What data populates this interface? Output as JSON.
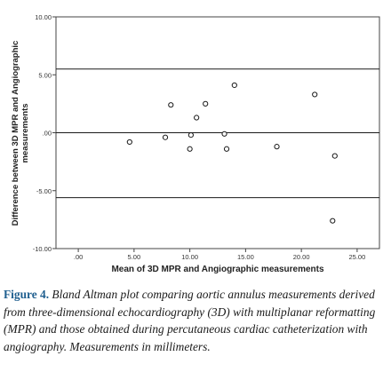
{
  "chart_data": {
    "type": "scatter",
    "title": "",
    "xlabel": "Mean of 3D MPR and Angiographic measurements",
    "ylabel": "Difference between 3D MPR and Angiographic measurements",
    "xlim": [
      -2,
      27
    ],
    "ylim": [
      -10,
      10
    ],
    "xticks": [
      ".00",
      "5.00",
      "10.00",
      "15.00",
      "20.00",
      "25.00"
    ],
    "yticks": [
      "10.00",
      "5.00",
      ".00",
      "-5.00",
      "-10.00"
    ],
    "reference_lines": [
      5.5,
      0,
      -5.6
    ],
    "grid": false,
    "points": [
      {
        "x": 4.6,
        "y": -0.8
      },
      {
        "x": 7.8,
        "y": -0.4
      },
      {
        "x": 8.3,
        "y": 2.4
      },
      {
        "x": 10.0,
        "y": -1.4
      },
      {
        "x": 10.1,
        "y": -0.2
      },
      {
        "x": 10.6,
        "y": 1.3
      },
      {
        "x": 11.4,
        "y": 2.5
      },
      {
        "x": 13.1,
        "y": -0.1
      },
      {
        "x": 13.3,
        "y": -1.4
      },
      {
        "x": 14.0,
        "y": 4.1
      },
      {
        "x": 17.8,
        "y": -1.2
      },
      {
        "x": 21.2,
        "y": 3.3
      },
      {
        "x": 23.0,
        "y": -2.0
      },
      {
        "x": 22.8,
        "y": -7.6
      }
    ]
  },
  "caption": {
    "label": "Figure 4.",
    "text": " Bland Altman plot comparing aortic annulus measurements derived from three-dimensional echocardiography (3D) with multiplanar reformatting (MPR) and those obtained during percutaneous cardiac catheterization with angiography. Measurements in millimeters."
  }
}
